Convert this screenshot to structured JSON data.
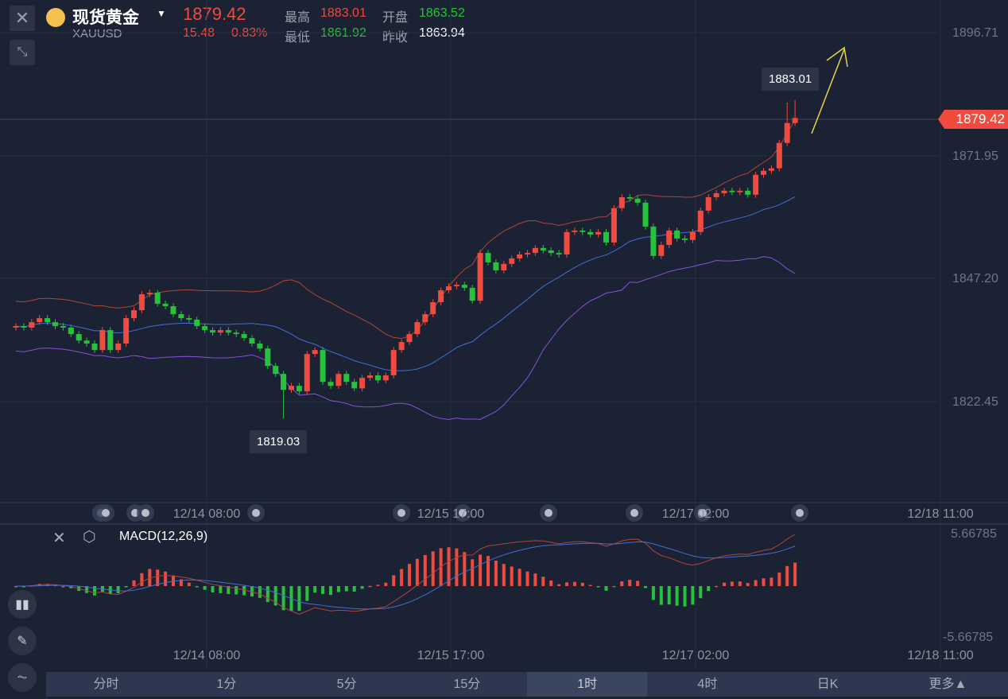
{
  "header": {
    "name": "现货黄金",
    "symbol": "XAUUSD",
    "price": "1879.42",
    "change": "15.48",
    "change_pct": "0.83%",
    "high_label": "最高",
    "high": "1883.01",
    "open_label": "开盘",
    "open": "1863.52",
    "low_label": "最低",
    "low": "1861.92",
    "prev_close_label": "昨收",
    "prev_close": "1863.94"
  },
  "price_axis": [
    "1896.71",
    "1871.95",
    "1847.20",
    "1822.45"
  ],
  "current_price_tag": "1879.42",
  "tooltips": {
    "max": "1883.01",
    "min": "1819.03"
  },
  "time_labels": [
    "12/14 08:00",
    "12/15 17:00",
    "12/17 02:00",
    "12/18 11:00"
  ],
  "macd": {
    "title": "MACD(12,26,9)",
    "axis_top": "5.66785",
    "axis_bottom": "-5.66785"
  },
  "tabs": [
    "分时",
    "1分",
    "5分",
    "15分",
    "1时",
    "4时",
    "日K",
    "更多▲"
  ],
  "active_tab": "1时",
  "colors": {
    "up": "#f04b3e",
    "down": "#27c23c",
    "boll_upper": "#b2453b",
    "boll_mid": "#3f6fd8",
    "boll_lower": "#8a4fe0"
  },
  "chart_data": {
    "type": "candlestick",
    "closes": [
      1837.6,
      1837.3,
      1838.4,
      1839.2,
      1838.4,
      1837.6,
      1837.3,
      1836.0,
      1834.7,
      1834.1,
      1832.8,
      1836.8,
      1832.8,
      1834.1,
      1839.2,
      1840.8,
      1844.0,
      1844.3,
      1842.1,
      1841.6,
      1840.0,
      1839.2,
      1838.9,
      1837.6,
      1836.8,
      1836.3,
      1836.8,
      1836.3,
      1836.0,
      1835.2,
      1834.1,
      1833.1,
      1829.6,
      1828.0,
      1824.8,
      1825.6,
      1824.5,
      1832.0,
      1832.8,
      1826.4,
      1825.6,
      1828.0,
      1826.4,
      1825.1,
      1827.2,
      1827.7,
      1826.7,
      1827.7,
      1832.8,
      1834.4,
      1836.0,
      1838.4,
      1840.0,
      1842.4,
      1844.8,
      1845.6,
      1845.9,
      1845.3,
      1842.7,
      1852.3,
      1850.4,
      1848.8,
      1850.1,
      1851.2,
      1852.0,
      1852.3,
      1853.3,
      1852.8,
      1852.3,
      1852.0,
      1856.5,
      1856.8,
      1856.5,
      1856.0,
      1856.5,
      1854.4,
      1861.3,
      1863.5,
      1863.2,
      1862.4,
      1857.6,
      1851.7,
      1853.9,
      1856.8,
      1855.2,
      1854.9,
      1856.5,
      1860.8,
      1863.5,
      1864.3,
      1864.8,
      1864.5,
      1864.8,
      1864.0,
      1868.0,
      1868.8,
      1869.3,
      1874.4,
      1878.4,
      1879.4
    ],
    "min_index": 34,
    "min_low": 1819.03,
    "max_high": 1883.01,
    "ylim": [
      1815,
      1900
    ],
    "indicators": [
      "BOLL(20,2)",
      "MACD(12,26,9)"
    ]
  }
}
